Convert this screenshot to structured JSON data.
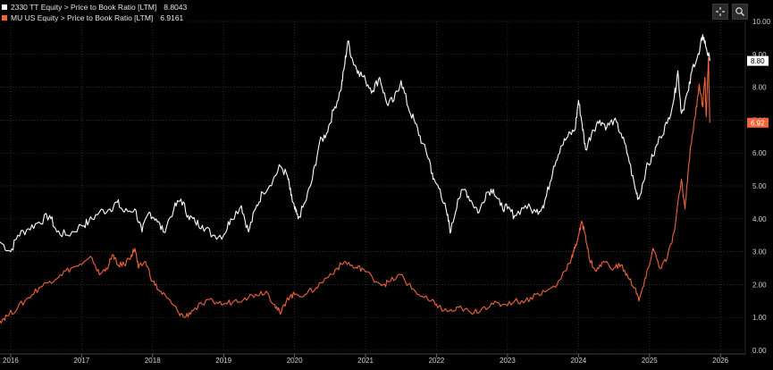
{
  "legend": [
    {
      "label": "2330 TT Equity > Price to Book Ratio [LTM]",
      "value": "8.8043",
      "color": "#ffffff"
    },
    {
      "label": "MU US Equity > Price to Book Ratio [LTM]",
      "value": "6.9161",
      "color": "#f0643c"
    }
  ],
  "toolbar": {
    "fit_icon": "crosshair-icon",
    "zoom_icon": "zoom-icon"
  },
  "chart_data": {
    "type": "line",
    "xlabel": "",
    "ylabel": "",
    "xlim": [
      2015.85,
      2026.35
    ],
    "ylim": [
      0,
      10
    ],
    "y_ticks": [
      "0.00",
      "1.00",
      "2.00",
      "3.00",
      "4.00",
      "5.00",
      "6.00",
      "7.00",
      "8.00",
      "9.00",
      "10.00"
    ],
    "x_ticks": [
      {
        "label": "2016",
        "x": 2016.0
      },
      {
        "label": "2017",
        "x": 2017.0
      },
      {
        "label": "2018",
        "x": 2018.0
      },
      {
        "label": "2019",
        "x": 2019.0
      },
      {
        "label": "2020",
        "x": 2020.0
      },
      {
        "label": "2021",
        "x": 2021.0
      },
      {
        "label": "2022",
        "x": 2022.0
      },
      {
        "label": "2023",
        "x": 2023.0
      },
      {
        "label": "2024",
        "x": 2024.0
      },
      {
        "label": "2025",
        "x": 2025.0
      },
      {
        "label": "2026",
        "x": 2026.0
      }
    ],
    "grid": true,
    "series": [
      {
        "name": "2330 TT Equity > Price to Book Ratio [LTM]",
        "color": "#ffffff",
        "last_label": "8.80",
        "points": [
          [
            2015.85,
            3.3
          ],
          [
            2016.0,
            3.0
          ],
          [
            2016.1,
            3.5
          ],
          [
            2016.25,
            3.7
          ],
          [
            2016.4,
            3.9
          ],
          [
            2016.55,
            4.1
          ],
          [
            2016.65,
            3.6
          ],
          [
            2016.8,
            3.5
          ],
          [
            2017.0,
            3.8
          ],
          [
            2017.1,
            3.9
          ],
          [
            2017.25,
            4.2
          ],
          [
            2017.4,
            4.3
          ],
          [
            2017.5,
            4.5
          ],
          [
            2017.6,
            4.2
          ],
          [
            2017.75,
            4.3
          ],
          [
            2017.85,
            3.6
          ],
          [
            2017.95,
            4.2
          ],
          [
            2018.05,
            4.0
          ],
          [
            2018.15,
            3.6
          ],
          [
            2018.3,
            4.3
          ],
          [
            2018.4,
            4.6
          ],
          [
            2018.5,
            4.1
          ],
          [
            2018.6,
            3.9
          ],
          [
            2018.7,
            3.8
          ],
          [
            2018.85,
            3.5
          ],
          [
            2019.0,
            3.5
          ],
          [
            2019.1,
            4.0
          ],
          [
            2019.25,
            4.4
          ],
          [
            2019.35,
            3.6
          ],
          [
            2019.45,
            4.3
          ],
          [
            2019.55,
            4.8
          ],
          [
            2019.7,
            5.2
          ],
          [
            2019.8,
            5.6
          ],
          [
            2019.9,
            5.3
          ],
          [
            2019.95,
            4.7
          ],
          [
            2020.0,
            4.3
          ],
          [
            2020.05,
            4.0
          ],
          [
            2020.15,
            4.5
          ],
          [
            2020.25,
            5.2
          ],
          [
            2020.35,
            6.3
          ],
          [
            2020.45,
            6.6
          ],
          [
            2020.55,
            7.3
          ],
          [
            2020.65,
            7.9
          ],
          [
            2020.7,
            8.6
          ],
          [
            2020.75,
            9.4
          ],
          [
            2020.82,
            8.8
          ],
          [
            2020.9,
            8.5
          ],
          [
            2021.0,
            8.2
          ],
          [
            2021.1,
            7.9
          ],
          [
            2021.2,
            8.3
          ],
          [
            2021.3,
            7.5
          ],
          [
            2021.4,
            7.6
          ],
          [
            2021.5,
            8.2
          ],
          [
            2021.6,
            7.4
          ],
          [
            2021.7,
            6.9
          ],
          [
            2021.8,
            6.3
          ],
          [
            2021.9,
            5.8
          ],
          [
            2021.95,
            5.2
          ],
          [
            2022.05,
            4.9
          ],
          [
            2022.15,
            4.1
          ],
          [
            2022.2,
            3.6
          ],
          [
            2022.3,
            4.6
          ],
          [
            2022.4,
            4.9
          ],
          [
            2022.5,
            4.5
          ],
          [
            2022.6,
            4.2
          ],
          [
            2022.7,
            4.8
          ],
          [
            2022.8,
            4.9
          ],
          [
            2022.9,
            4.4
          ],
          [
            2023.0,
            4.3
          ],
          [
            2023.1,
            4.1
          ],
          [
            2023.25,
            4.4
          ],
          [
            2023.4,
            4.2
          ],
          [
            2023.5,
            4.4
          ],
          [
            2023.55,
            4.7
          ],
          [
            2023.65,
            5.6
          ],
          [
            2023.75,
            6.2
          ],
          [
            2023.85,
            6.5
          ],
          [
            2023.95,
            6.7
          ],
          [
            2024.0,
            7.6
          ],
          [
            2024.05,
            6.9
          ],
          [
            2024.1,
            6.1
          ],
          [
            2024.2,
            6.7
          ],
          [
            2024.3,
            7.0
          ],
          [
            2024.4,
            6.8
          ],
          [
            2024.5,
            7.0
          ],
          [
            2024.6,
            6.6
          ],
          [
            2024.7,
            5.9
          ],
          [
            2024.8,
            4.9
          ],
          [
            2024.85,
            4.6
          ],
          [
            2024.95,
            5.5
          ],
          [
            2025.05,
            5.9
          ],
          [
            2025.15,
            6.5
          ],
          [
            2025.25,
            6.9
          ],
          [
            2025.35,
            7.7
          ],
          [
            2025.4,
            8.5
          ],
          [
            2025.45,
            7.2
          ],
          [
            2025.55,
            7.9
          ],
          [
            2025.62,
            8.7
          ],
          [
            2025.7,
            9.0
          ],
          [
            2025.75,
            9.6
          ],
          [
            2025.8,
            9.2
          ],
          [
            2025.85,
            8.8
          ]
        ]
      },
      {
        "name": "MU US Equity > Price to Book Ratio [LTM]",
        "color": "#f0643c",
        "last_label": "6.92",
        "points": [
          [
            2015.85,
            0.9
          ],
          [
            2015.95,
            1.05
          ],
          [
            2016.1,
            1.3
          ],
          [
            2016.25,
            1.6
          ],
          [
            2016.4,
            1.9
          ],
          [
            2016.55,
            2.1
          ],
          [
            2016.7,
            2.3
          ],
          [
            2016.85,
            2.5
          ],
          [
            2017.0,
            2.6
          ],
          [
            2017.15,
            2.8
          ],
          [
            2017.25,
            2.3
          ],
          [
            2017.35,
            2.5
          ],
          [
            2017.45,
            2.9
          ],
          [
            2017.5,
            2.6
          ],
          [
            2017.6,
            2.6
          ],
          [
            2017.7,
            2.9
          ],
          [
            2017.75,
            3.1
          ],
          [
            2017.8,
            2.5
          ],
          [
            2017.9,
            2.7
          ],
          [
            2018.0,
            2.1
          ],
          [
            2018.1,
            1.8
          ],
          [
            2018.2,
            1.6
          ],
          [
            2018.35,
            1.2
          ],
          [
            2018.45,
            1.0
          ],
          [
            2018.55,
            1.2
          ],
          [
            2018.7,
            1.4
          ],
          [
            2018.85,
            1.5
          ],
          [
            2019.0,
            1.4
          ],
          [
            2019.15,
            1.5
          ],
          [
            2019.3,
            1.6
          ],
          [
            2019.45,
            1.7
          ],
          [
            2019.6,
            1.8
          ],
          [
            2019.72,
            1.4
          ],
          [
            2019.8,
            1.1
          ],
          [
            2019.9,
            1.6
          ],
          [
            2020.0,
            1.7
          ],
          [
            2020.15,
            1.7
          ],
          [
            2020.3,
            1.9
          ],
          [
            2020.45,
            2.2
          ],
          [
            2020.6,
            2.5
          ],
          [
            2020.72,
            2.7
          ],
          [
            2020.85,
            2.5
          ],
          [
            2020.95,
            2.5
          ],
          [
            2021.1,
            2.2
          ],
          [
            2021.25,
            2.0
          ],
          [
            2021.35,
            2.1
          ],
          [
            2021.5,
            2.3
          ],
          [
            2021.6,
            2.0
          ],
          [
            2021.75,
            1.7
          ],
          [
            2021.9,
            1.5
          ],
          [
            2022.0,
            1.4
          ],
          [
            2022.1,
            1.2
          ],
          [
            2022.25,
            1.2
          ],
          [
            2022.35,
            1.3
          ],
          [
            2022.5,
            1.1
          ],
          [
            2022.65,
            1.3
          ],
          [
            2022.8,
            1.4
          ],
          [
            2022.95,
            1.4
          ],
          [
            2023.1,
            1.5
          ],
          [
            2023.25,
            1.5
          ],
          [
            2023.4,
            1.7
          ],
          [
            2023.55,
            1.8
          ],
          [
            2023.7,
            2.0
          ],
          [
            2023.8,
            2.4
          ],
          [
            2023.9,
            2.8
          ],
          [
            2023.95,
            3.1
          ],
          [
            2024.0,
            3.5
          ],
          [
            2024.05,
            3.9
          ],
          [
            2024.1,
            3.5
          ],
          [
            2024.15,
            2.8
          ],
          [
            2024.25,
            2.4
          ],
          [
            2024.35,
            2.7
          ],
          [
            2024.5,
            2.5
          ],
          [
            2024.6,
            2.6
          ],
          [
            2024.7,
            2.2
          ],
          [
            2024.8,
            1.9
          ],
          [
            2024.85,
            1.5
          ],
          [
            2024.95,
            2.2
          ],
          [
            2025.05,
            3.1
          ],
          [
            2025.15,
            2.5
          ],
          [
            2025.25,
            2.8
          ],
          [
            2025.35,
            3.6
          ],
          [
            2025.45,
            5.2
          ],
          [
            2025.5,
            4.3
          ],
          [
            2025.55,
            5.6
          ],
          [
            2025.6,
            6.5
          ],
          [
            2025.65,
            7.2
          ],
          [
            2025.7,
            8.1
          ],
          [
            2025.75,
            7.4
          ],
          [
            2025.78,
            8.3
          ],
          [
            2025.8,
            7.1
          ],
          [
            2025.83,
            8.9
          ],
          [
            2025.85,
            6.92
          ]
        ]
      }
    ]
  }
}
